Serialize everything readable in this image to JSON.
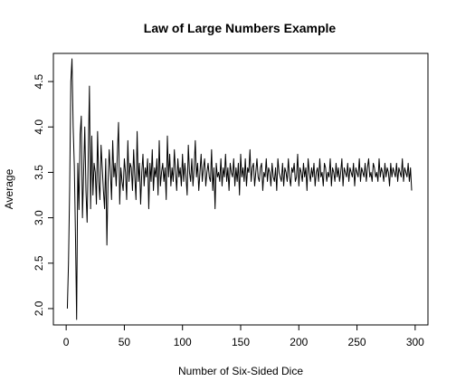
{
  "chart_data": {
    "type": "line",
    "title": "Law of Large Numbers Example",
    "xlabel": "Number of Six-Sided Dice",
    "ylabel": "Average",
    "xlim": [
      -11,
      311
    ],
    "ylim": [
      1.82,
      4.81
    ],
    "xticks": [
      0,
      50,
      100,
      150,
      200,
      250,
      300
    ],
    "yticks": [
      2.0,
      2.5,
      3.0,
      3.5,
      4.0,
      4.5
    ],
    "ytick_labels": [
      "2.0",
      "2.5",
      "3.0",
      "3.5",
      "4.0",
      "4.5"
    ],
    "grid": false,
    "series": [
      {
        "x_start": 1,
        "x_step": 1,
        "color": "#000000",
        "values": [
          2.0,
          2.5,
          3.33,
          4.5,
          4.75,
          4.0,
          3.57,
          2.8,
          1.88,
          3.6,
          3.09,
          3.92,
          4.12,
          3.0,
          3.5,
          4.0,
          3.3,
          2.95,
          3.7,
          4.45,
          3.1,
          3.9,
          3.25,
          3.6,
          3.5,
          3.15,
          3.95,
          3.4,
          3.2,
          3.8,
          3.55,
          3.3,
          3.1,
          3.65,
          2.7,
          3.4,
          3.75,
          3.5,
          3.2,
          3.85,
          3.45,
          3.6,
          3.35,
          3.7,
          4.05,
          3.15,
          3.55,
          3.4,
          3.3,
          3.65,
          3.5,
          3.2,
          3.85,
          3.4,
          3.6,
          3.55,
          3.3,
          3.75,
          3.45,
          3.2,
          3.95,
          3.4,
          3.6,
          3.15,
          3.5,
          3.7,
          3.35,
          3.55,
          3.45,
          3.65,
          3.1,
          3.6,
          3.4,
          3.75,
          3.3,
          3.55,
          3.45,
          3.65,
          3.25,
          3.85,
          3.35,
          3.5,
          3.6,
          3.4,
          3.55,
          3.2,
          3.9,
          3.45,
          3.7,
          3.35,
          3.55,
          3.4,
          3.75,
          3.5,
          3.3,
          3.65,
          3.45,
          3.55,
          3.35,
          3.7,
          3.4,
          3.6,
          3.45,
          3.25,
          3.8,
          3.5,
          3.4,
          3.65,
          3.35,
          3.55,
          3.85,
          3.45,
          3.6,
          3.3,
          3.5,
          3.7,
          3.4,
          3.55,
          3.65,
          3.35,
          3.5,
          3.6,
          3.45,
          3.4,
          3.75,
          3.3,
          3.55,
          3.1,
          3.6,
          3.45,
          3.5,
          3.4,
          3.65,
          3.35,
          3.55,
          3.45,
          3.7,
          3.4,
          3.55,
          3.3,
          3.6,
          3.5,
          3.45,
          3.65,
          3.35,
          3.55,
          3.4,
          3.6,
          3.25,
          3.7,
          3.45,
          3.55,
          3.4,
          3.65,
          3.35,
          3.55,
          3.5,
          3.75,
          3.4,
          3.55,
          3.6,
          3.35,
          3.5,
          3.65,
          3.45,
          3.4,
          3.55,
          3.6,
          3.3,
          3.5,
          3.45,
          3.65,
          3.4,
          3.55,
          3.5,
          3.35,
          3.6,
          3.45,
          3.4,
          3.55,
          3.3,
          3.65,
          3.5,
          3.45,
          3.4,
          3.6,
          3.35,
          3.55,
          3.5,
          3.4,
          3.65,
          3.45,
          3.35,
          3.55,
          3.5,
          3.6,
          3.4,
          3.45,
          3.7,
          3.35,
          3.55,
          3.5,
          3.4,
          3.6,
          3.45,
          3.55,
          3.3,
          3.65,
          3.5,
          3.4,
          3.55,
          3.45,
          3.6,
          3.35,
          3.5,
          3.55,
          3.4,
          3.65,
          3.45,
          3.5,
          3.35,
          3.6,
          3.55,
          3.4,
          3.5,
          3.45,
          3.65,
          3.35,
          3.55,
          3.5,
          3.4,
          3.6,
          3.45,
          3.55,
          3.4,
          3.5,
          3.65,
          3.35,
          3.55,
          3.5,
          3.45,
          3.6,
          3.4,
          3.55,
          3.5,
          3.45,
          3.6,
          3.35,
          3.55,
          3.5,
          3.45,
          3.65,
          3.4,
          3.55,
          3.5,
          3.45,
          3.6,
          3.4,
          3.55,
          3.65,
          3.45,
          3.5,
          3.4,
          3.6,
          3.55,
          3.45,
          3.5,
          3.4,
          3.65,
          3.45,
          3.55,
          3.5,
          3.4,
          3.6,
          3.45,
          3.55,
          3.5,
          3.35,
          3.6,
          3.45,
          3.55,
          3.5,
          3.45,
          3.6,
          3.4,
          3.55,
          3.5,
          3.45,
          3.65,
          3.4,
          3.55,
          3.5,
          3.45,
          3.6,
          3.4,
          3.55,
          3.3
        ]
      }
    ]
  }
}
